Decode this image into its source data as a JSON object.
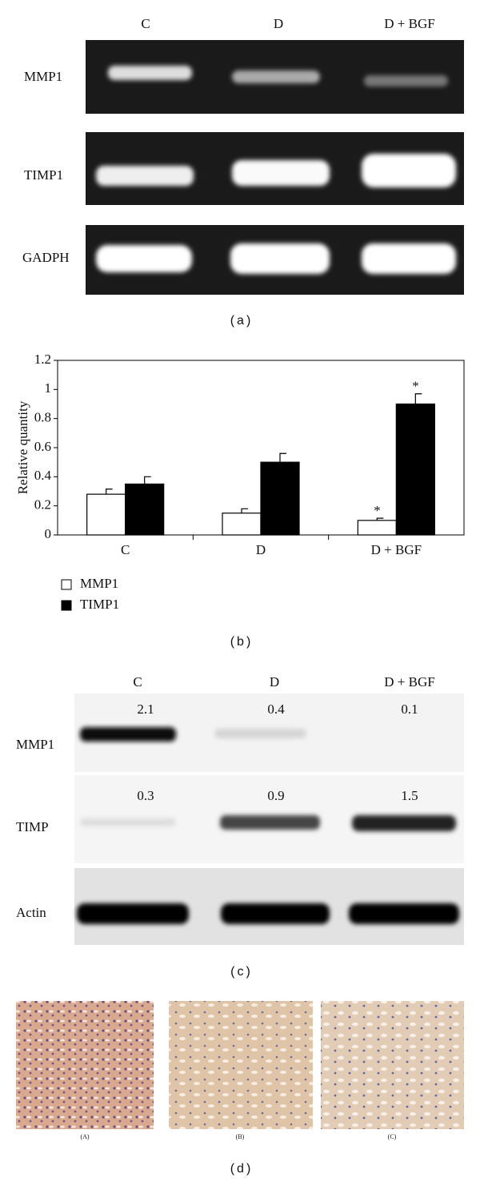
{
  "panel_a": {
    "lanes": [
      "C",
      "D",
      "D + BGF"
    ],
    "rows": [
      "MMP1",
      "TIMP1",
      "GADPH"
    ],
    "label": "(a)"
  },
  "chart_data": {
    "type": "bar",
    "panel_label": "(b)",
    "y_label": "Relative quantity",
    "categories": [
      "C",
      "D",
      "D + BGF"
    ],
    "series": [
      {
        "name": "MMP1",
        "color": "#ffffff",
        "values": [
          0.28,
          0.15,
          0.1
        ],
        "errors": [
          0.035,
          0.03,
          0.015
        ],
        "significance": [
          null,
          null,
          "*"
        ]
      },
      {
        "name": "TIMP1",
        "color": "#000000",
        "values": [
          0.35,
          0.5,
          0.9
        ],
        "errors": [
          0.05,
          0.06,
          0.07
        ],
        "significance": [
          null,
          null,
          "*"
        ]
      }
    ],
    "ylim": [
      0,
      1.2
    ],
    "yticks": [
      0,
      0.2,
      0.4,
      0.6,
      0.8,
      1,
      1.2
    ],
    "legend": "bottom-left"
  },
  "panel_c": {
    "lanes": [
      "C",
      "D",
      "D + BGF"
    ],
    "rows": [
      {
        "name": "MMP1",
        "values": [
          "2.1",
          "0.4",
          "0.1"
        ]
      },
      {
        "name": "TIMP",
        "values": [
          "0.3",
          "0.9",
          "1.5"
        ]
      },
      {
        "name": "Actin"
      }
    ],
    "label": "(c)"
  },
  "panel_d": {
    "images": [
      "(A)",
      "(B)",
      "(C)"
    ],
    "label": "(d)"
  }
}
